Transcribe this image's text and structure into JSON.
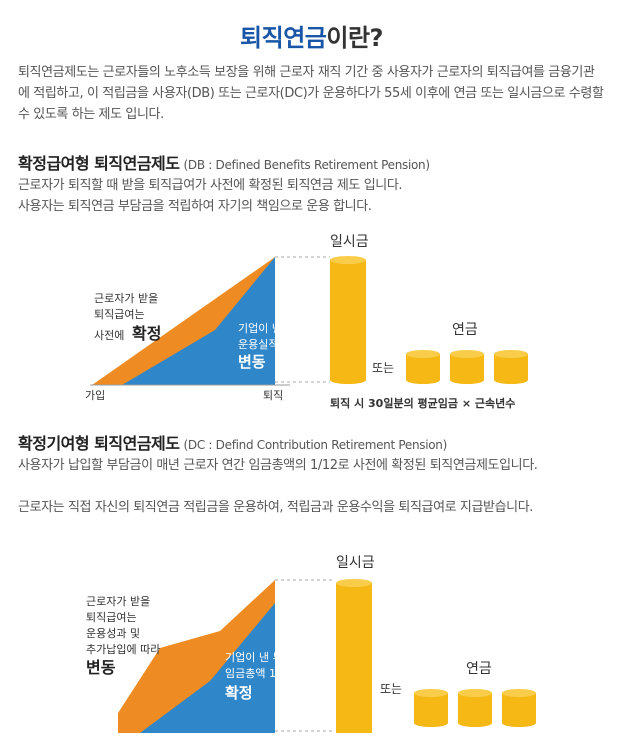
{
  "title": {
    "highlight": "퇴직연금",
    "rest": "이란?"
  },
  "intro": "퇴직연금제도는 근로자들의 노후소득 보장을 위해 근로자 재직 기간 중 사용자가 근로자의 퇴직급여를 금융기관에 적립하고, 이 적립금을 사용자(DB) 또는 근로자(DC)가 운용하다가 55세 이후에 연금 또는 일시금으로 수령할 수 있도록 하는 제도 입니다.",
  "db": {
    "heading": "확정급여형 퇴직연금제도",
    "heading_sub": "(DB : Defined Benefits Retirement Pension)",
    "desc1": "근로자가 퇴직할 때 받을 퇴직급여가 사전에 확정된 퇴직연금 제도 입니다.",
    "desc2": "사용자는 퇴직연금 부담금을 적립하여 자기의 책임으로 운용 합니다.",
    "diagram": {
      "left_l1": "근로자가 받을",
      "left_l2": "퇴직급여는",
      "left_l3a": "사전에",
      "left_l3b": "확정",
      "blue_l1": "기업이 낸 부담금은",
      "blue_l2": "운용실적에 따라",
      "blue_l3": "변동",
      "x_start": "가입",
      "x_end": "퇴직",
      "lump_label": "일시금",
      "or_label": "또는",
      "annuity_label": "연금",
      "formula": "퇴직 시 30일분의 평균임금 × 근속년수"
    }
  },
  "dc": {
    "heading": "확정기여형 퇴직연금제도",
    "heading_sub": "(DC : Defind Contribution Retirement Pension)",
    "desc1": "사용자가 납입할 부담금이 매년 근로자 연간 임금총액의 1/12로 사전에 확정된 퇴직연금제도입니다.",
    "desc2": "근로자는 직접 자신의 퇴직연금 적립금을 운용하여, 적립금과 운용수익을 퇴직급여로 지급받습니다.",
    "diagram": {
      "left_l1": "근로자가 받을",
      "left_l2": "퇴직급여는",
      "left_l3": "운용성과 및",
      "left_l4": "추가납입에 따라",
      "left_l5": "변동",
      "blue_l1": "기업이 낸 부담금은",
      "blue_l2": "임금총액 1/12",
      "blue_l3": "확정",
      "lump_label": "일시금",
      "or_label": "또는",
      "annuity_label": "연금"
    }
  },
  "colors": {
    "orange": "#ee8c23",
    "blue": "#2f86c9",
    "gold": "#f5b814",
    "title_blue": "#1a56a8"
  }
}
